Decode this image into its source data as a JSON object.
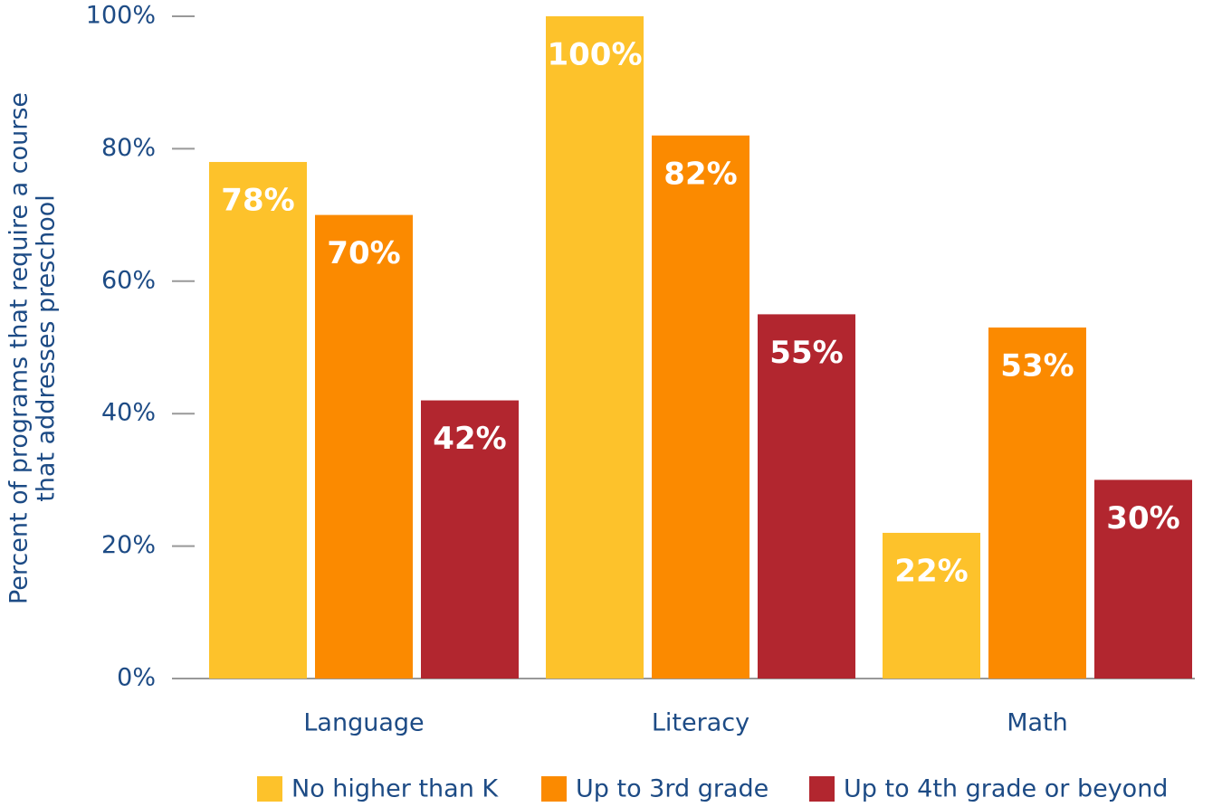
{
  "chart_data": {
    "type": "bar",
    "ylabel": [
      "Percent of programs that require a course",
      "that addresses preschool"
    ],
    "categories": [
      "Language",
      "Literacy",
      "Math"
    ],
    "series": [
      {
        "name": "No higher than K",
        "color": "#fdc22b",
        "values": [
          78,
          100,
          22
        ],
        "value_labels": [
          "78%",
          "100%",
          "22%"
        ]
      },
      {
        "name": "Up to 3rd grade",
        "color": "#fb8a00",
        "values": [
          70,
          82,
          53
        ],
        "value_labels": [
          "70%",
          "82%",
          "53%"
        ]
      },
      {
        "name": "Up to 4th grade or beyond",
        "color": "#b2262f",
        "values": [
          42,
          55,
          30
        ],
        "value_labels": [
          "42%",
          "55%",
          "30%"
        ]
      }
    ],
    "ylim": [
      0,
      100
    ],
    "yticks": [
      {
        "value": 0,
        "label": "0%"
      },
      {
        "value": 20,
        "label": "20%"
      },
      {
        "value": 40,
        "label": "40%"
      },
      {
        "value": 60,
        "label": "60%"
      },
      {
        "value": 80,
        "label": "80%"
      },
      {
        "value": 100,
        "label": "100%"
      }
    ],
    "legend": "bottom"
  }
}
